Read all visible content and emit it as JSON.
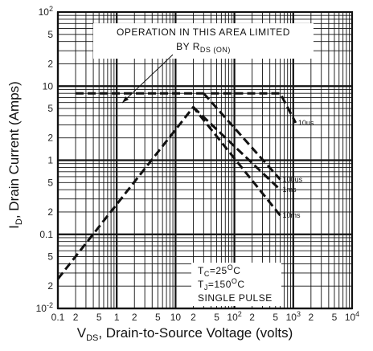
{
  "chart_data": {
    "type": "line",
    "xscale": "log",
    "yscale": "log",
    "xlim": [
      0.1,
      10000
    ],
    "ylim": [
      0.01,
      100
    ],
    "grid": true,
    "xlabel_main": "V",
    "xlabel_sub": "DS",
    "xlabel_rest": ", Drain-to-Source Voltage (volts)",
    "ylabel_main": "I",
    "ylabel_sub": "D",
    "ylabel_rest": ", Drain Current (Amps)",
    "x_ticks": [
      {
        "value": 0.1,
        "label": "0.1",
        "sup": ""
      },
      {
        "value": 0.2,
        "label": "2",
        "sup": ""
      },
      {
        "value": 0.5,
        "label": "5",
        "sup": ""
      },
      {
        "value": 1,
        "label": "1",
        "sup": ""
      },
      {
        "value": 2,
        "label": "2",
        "sup": ""
      },
      {
        "value": 5,
        "label": "5",
        "sup": ""
      },
      {
        "value": 10,
        "label": "10",
        "sup": ""
      },
      {
        "value": 20,
        "label": "2",
        "sup": ""
      },
      {
        "value": 50,
        "label": "5",
        "sup": ""
      },
      {
        "value": 100,
        "label": "10",
        "sup": "2"
      },
      {
        "value": 200,
        "label": "2",
        "sup": ""
      },
      {
        "value": 500,
        "label": "5",
        "sup": ""
      },
      {
        "value": 1000,
        "label": "10",
        "sup": "3"
      },
      {
        "value": 2000,
        "label": "2",
        "sup": ""
      },
      {
        "value": 5000,
        "label": "5",
        "sup": ""
      },
      {
        "value": 10000,
        "label": "10",
        "sup": "4"
      }
    ],
    "y_ticks": [
      {
        "value": 100,
        "label": "10",
        "sup": "2"
      },
      {
        "value": 50,
        "label": "5",
        "sup": ""
      },
      {
        "value": 20,
        "label": "2",
        "sup": ""
      },
      {
        "value": 10,
        "label": "10",
        "sup": ""
      },
      {
        "value": 5,
        "label": "5",
        "sup": ""
      },
      {
        "value": 2,
        "label": "2",
        "sup": ""
      },
      {
        "value": 1,
        "label": "1",
        "sup": ""
      },
      {
        "value": 0.5,
        "label": "5",
        "sup": ""
      },
      {
        "value": 0.2,
        "label": "2",
        "sup": ""
      },
      {
        "value": 0.1,
        "label": "0.1",
        "sup": ""
      },
      {
        "value": 0.05,
        "label": "5",
        "sup": ""
      },
      {
        "value": 0.02,
        "label": "2",
        "sup": ""
      },
      {
        "value": 0.01,
        "label": "10",
        "sup": "-2"
      }
    ],
    "series": [
      {
        "name": "10us",
        "points": [
          [
            40,
            8
          ],
          [
            600,
            8
          ],
          [
            1100,
            3.2
          ]
        ]
      },
      {
        "name": "100us",
        "points": [
          [
            30,
            8
          ],
          [
            600,
            0.55
          ]
        ]
      },
      {
        "name": "1ms",
        "points": [
          [
            20,
            5.2
          ],
          [
            600,
            0.4
          ]
        ]
      },
      {
        "name": "10ms",
        "points": [
          [
            0.1,
            0.025
          ],
          [
            20,
            5.2
          ],
          [
            600,
            0.18
          ]
        ]
      }
    ],
    "rds_limit_line": {
      "points": [
        [
          0.2,
          8
        ],
        [
          30,
          8
        ]
      ]
    },
    "annotations": {
      "box_line1": "OPERATION IN THIS AREA LIMITED",
      "box_line2_main": "BY R",
      "box_line2_sub": "DS (ON)",
      "conditions": [
        {
          "main": "T",
          "sub": "C",
          "rest": "=25",
          "sup": "O",
          "tail": "C"
        },
        {
          "main": "T",
          "sub": "J",
          "rest": "=150",
          "sup": "O",
          "tail": "C"
        },
        {
          "main": "SINGLE PULSE",
          "sub": "",
          "rest": "",
          "sup": "",
          "tail": ""
        }
      ]
    }
  }
}
